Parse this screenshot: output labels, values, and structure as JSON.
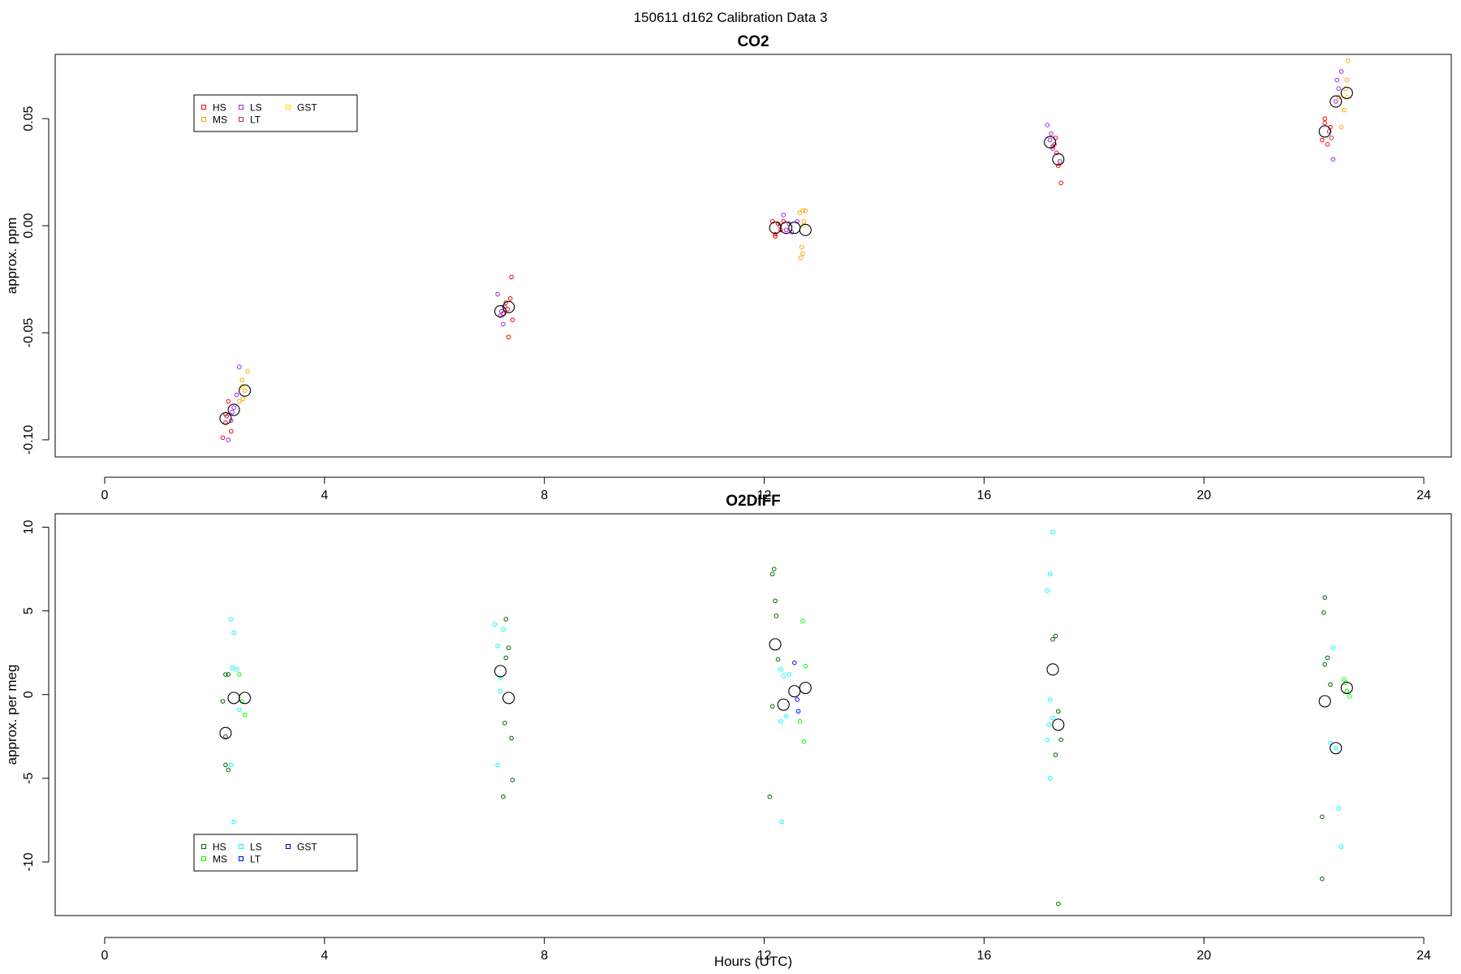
{
  "figure": {
    "title": "150611   d162   Calibration Data 3"
  },
  "chart_data": [
    {
      "type": "scatter",
      "title": "CO2",
      "xlabel": "",
      "ylabel": "approx. ppm",
      "xlim": [
        -0.9,
        24.5
      ],
      "ylim": [
        -0.108,
        0.08
      ],
      "x_ticks": [
        0,
        4,
        8,
        12,
        16,
        20,
        24
      ],
      "y_ticks": [
        -0.1,
        -0.05,
        0.0,
        0.05
      ],
      "y_tick_labels": [
        "-0.10",
        "-0.05",
        "0.00",
        "0.05"
      ],
      "legend": {
        "position": "top-left",
        "entries": [
          {
            "label": "HS",
            "color": "#ff0000"
          },
          {
            "label": "MS",
            "color": "#ffa500"
          },
          {
            "label": "LS",
            "color": "#a020f0"
          },
          {
            "label": "LT",
            "color": "#b03060"
          },
          {
            "label": "GST",
            "color": "#ffd700"
          }
        ]
      },
      "series": [
        {
          "name": "HS",
          "color": "#ff0000",
          "points": [
            [
              2.15,
              -0.099
            ],
            [
              2.2,
              -0.092
            ],
            [
              2.25,
              -0.082
            ],
            [
              2.3,
              -0.096
            ],
            [
              2.2,
              -0.088
            ],
            [
              7.25,
              -0.041
            ],
            [
              7.3,
              -0.036
            ],
            [
              7.35,
              -0.052
            ],
            [
              7.4,
              -0.024
            ],
            [
              7.42,
              -0.044
            ],
            [
              7.38,
              -0.034
            ],
            [
              7.33,
              -0.039
            ],
            [
              12.15,
              0.002
            ],
            [
              12.2,
              -0.005
            ],
            [
              12.25,
              0.001
            ],
            [
              12.3,
              -0.002
            ],
            [
              12.2,
              -0.004
            ],
            [
              12.35,
              0.002
            ],
            [
              17.25,
              0.037
            ],
            [
              17.3,
              0.041
            ],
            [
              17.35,
              0.028
            ],
            [
              17.4,
              0.02
            ],
            [
              17.32,
              0.034
            ],
            [
              22.15,
              0.04
            ],
            [
              22.2,
              0.048
            ],
            [
              22.25,
              0.038
            ],
            [
              22.3,
              0.046
            ],
            [
              22.2,
              0.05
            ]
          ]
        },
        {
          "name": "MS",
          "color": "#ffa500",
          "points": [
            [
              2.45,
              -0.082
            ],
            [
              2.5,
              -0.072
            ],
            [
              2.55,
              -0.077
            ],
            [
              2.6,
              -0.068
            ],
            [
              2.52,
              -0.081
            ],
            [
              12.65,
              0.006
            ],
            [
              12.7,
              -0.013
            ],
            [
              12.75,
              0.007
            ],
            [
              12.68,
              -0.01
            ],
            [
              12.72,
              0.002
            ],
            [
              12.66,
              -0.015
            ],
            [
              12.7,
              0.007
            ],
            [
              22.45,
              0.06
            ],
            [
              22.55,
              0.054
            ],
            [
              22.6,
              0.068
            ],
            [
              22.62,
              0.077
            ],
            [
              22.5,
              0.046
            ],
            [
              22.58,
              0.064
            ]
          ]
        },
        {
          "name": "LS",
          "color": "#a020f0",
          "points": [
            [
              2.25,
              -0.1
            ],
            [
              2.3,
              -0.091
            ],
            [
              2.35,
              -0.085
            ],
            [
              2.4,
              -0.079
            ],
            [
              2.45,
              -0.066
            ],
            [
              2.32,
              -0.087
            ],
            [
              7.15,
              -0.032
            ],
            [
              7.2,
              -0.042
            ],
            [
              7.25,
              -0.046
            ],
            [
              7.22,
              -0.04
            ],
            [
              12.35,
              0.005
            ],
            [
              12.4,
              -0.002
            ],
            [
              12.45,
              0.001
            ],
            [
              12.5,
              -0.003
            ],
            [
              12.6,
              0.002
            ],
            [
              17.15,
              0.047
            ],
            [
              17.2,
              0.04
            ],
            [
              17.25,
              0.036
            ],
            [
              17.22,
              0.043
            ],
            [
              22.35,
              0.031
            ],
            [
              22.4,
              0.058
            ],
            [
              22.45,
              0.064
            ],
            [
              22.5,
              0.072
            ],
            [
              22.42,
              0.068
            ]
          ]
        },
        {
          "name": "LT",
          "color": "#b03060",
          "points": [
            [
              2.22,
              -0.089
            ],
            [
              7.28,
              -0.038
            ],
            [
              12.28,
              0.0
            ],
            [
              17.28,
              0.038
            ],
            [
              17.38,
              0.03
            ],
            [
              22.28,
              0.044
            ],
            [
              22.32,
              0.041
            ]
          ]
        },
        {
          "name": "GST",
          "color": "#ffd700",
          "points": [
            [
              2.5,
              -0.075
            ],
            [
              12.72,
              0.0
            ],
            [
              22.6,
              0.06
            ]
          ]
        },
        {
          "name": "Mean",
          "color": "#000000",
          "big": true,
          "points": [
            [
              2.2,
              -0.09
            ],
            [
              2.35,
              -0.086
            ],
            [
              2.55,
              -0.077
            ],
            [
              7.2,
              -0.04
            ],
            [
              7.35,
              -0.038
            ],
            [
              12.2,
              -0.001
            ],
            [
              12.4,
              -0.001
            ],
            [
              12.55,
              -0.001
            ],
            [
              12.75,
              -0.002
            ],
            [
              17.2,
              0.039
            ],
            [
              17.35,
              0.031
            ],
            [
              22.2,
              0.044
            ],
            [
              22.4,
              0.058
            ],
            [
              22.6,
              0.062
            ]
          ]
        }
      ]
    },
    {
      "type": "scatter",
      "title": "O2DIFF",
      "xlabel": "Hours (UTC)",
      "ylabel": "approx. per meg",
      "xlim": [
        -0.9,
        24.5
      ],
      "ylim": [
        -13.2,
        10.8
      ],
      "x_ticks": [
        0,
        4,
        8,
        12,
        16,
        20,
        24
      ],
      "y_ticks": [
        -10,
        -5,
        0,
        5,
        10
      ],
      "y_tick_labels": [
        "-10",
        "-5",
        "0",
        "5",
        "10"
      ],
      "legend": {
        "position": "bottom-left",
        "entries": [
          {
            "label": "HS",
            "color": "#006400"
          },
          {
            "label": "MS",
            "color": "#00ff00"
          },
          {
            "label": "LS",
            "color": "#00ffff"
          },
          {
            "label": "LT",
            "color": "#0000ff"
          },
          {
            "label": "GST",
            "color": "#00008b"
          }
        ]
      },
      "series": [
        {
          "name": "HS",
          "color": "#006400",
          "points": [
            [
              2.15,
              -0.4
            ],
            [
              2.2,
              1.2
            ],
            [
              2.25,
              1.2
            ],
            [
              2.2,
              -4.2
            ],
            [
              2.25,
              -4.5
            ],
            [
              2.15,
              -8.5
            ],
            [
              2.2,
              -2.5
            ],
            [
              7.3,
              4.5
            ],
            [
              7.35,
              2.8
            ],
            [
              7.4,
              -2.6
            ],
            [
              7.42,
              -5.1
            ],
            [
              7.28,
              -1.7
            ],
            [
              7.25,
              -6.1
            ],
            [
              7.3,
              2.2
            ],
            [
              12.15,
              7.2
            ],
            [
              12.2,
              5.6
            ],
            [
              12.22,
              4.7
            ],
            [
              12.25,
              2.1
            ],
            [
              12.1,
              -6.1
            ],
            [
              12.15,
              -0.7
            ],
            [
              12.18,
              7.5
            ],
            [
              17.25,
              3.3
            ],
            [
              17.3,
              3.5
            ],
            [
              17.35,
              -1.0
            ],
            [
              17.4,
              -2.7
            ],
            [
              17.3,
              -3.6
            ],
            [
              17.35,
              -12.5
            ],
            [
              22.15,
              -7.3
            ],
            [
              22.2,
              5.8
            ],
            [
              22.25,
              2.2
            ],
            [
              22.18,
              4.9
            ],
            [
              22.15,
              -11.0
            ],
            [
              22.3,
              0.6
            ],
            [
              22.2,
              1.8
            ]
          ]
        },
        {
          "name": "MS",
          "color": "#00ff00",
          "points": [
            [
              2.45,
              1.2
            ],
            [
              2.5,
              -0.4
            ],
            [
              2.55,
              -1.2
            ],
            [
              12.7,
              4.4
            ],
            [
              12.75,
              1.7
            ],
            [
              12.65,
              -1.6
            ],
            [
              12.72,
              -2.8
            ],
            [
              22.55,
              0.9
            ],
            [
              22.6,
              0.2
            ],
            [
              22.65,
              -0.1
            ],
            [
              22.58,
              0.7
            ]
          ]
        },
        {
          "name": "LS",
          "color": "#00ffff",
          "points": [
            [
              2.3,
              4.5
            ],
            [
              2.35,
              3.7
            ],
            [
              2.4,
              1.5
            ],
            [
              2.45,
              -0.9
            ],
            [
              2.3,
              -4.2
            ],
            [
              2.35,
              -7.6
            ],
            [
              2.32,
              1.6
            ],
            [
              7.1,
              4.2
            ],
            [
              7.15,
              2.9
            ],
            [
              7.2,
              1.0
            ],
            [
              7.25,
              3.9
            ],
            [
              7.15,
              -4.2
            ],
            [
              7.2,
              0.2
            ],
            [
              12.3,
              1.5
            ],
            [
              12.35,
              1.1
            ],
            [
              12.4,
              -1.3
            ],
            [
              12.45,
              1.2
            ],
            [
              12.3,
              -1.6
            ],
            [
              12.32,
              -7.6
            ],
            [
              17.15,
              6.2
            ],
            [
              17.2,
              7.2
            ],
            [
              17.25,
              9.7
            ],
            [
              17.2,
              -0.3
            ],
            [
              17.25,
              -1.4
            ],
            [
              17.2,
              -5.0
            ],
            [
              17.15,
              -2.7
            ],
            [
              17.18,
              -1.8
            ],
            [
              22.35,
              2.8
            ],
            [
              22.4,
              -3.2
            ],
            [
              22.45,
              -6.8
            ],
            [
              22.5,
              -9.1
            ],
            [
              22.3,
              -2.9
            ]
          ]
        },
        {
          "name": "LT",
          "color": "#0000ff",
          "points": [
            [
              12.55,
              1.9
            ],
            [
              12.6,
              -0.3
            ],
            [
              12.62,
              -1.0
            ]
          ]
        },
        {
          "name": "GST",
          "color": "#00008b",
          "points": []
        },
        {
          "name": "Mean",
          "color": "#000000",
          "big": true,
          "points": [
            [
              2.2,
              -2.3
            ],
            [
              2.35,
              -0.2
            ],
            [
              2.55,
              -0.2
            ],
            [
              7.2,
              1.4
            ],
            [
              7.35,
              -0.2
            ],
            [
              12.2,
              3.0
            ],
            [
              12.35,
              -0.6
            ],
            [
              12.55,
              0.2
            ],
            [
              12.75,
              0.4
            ],
            [
              17.25,
              1.5
            ],
            [
              17.35,
              -1.8
            ],
            [
              22.2,
              -0.4
            ],
            [
              22.4,
              -3.2
            ],
            [
              22.6,
              0.4
            ]
          ]
        }
      ]
    }
  ]
}
